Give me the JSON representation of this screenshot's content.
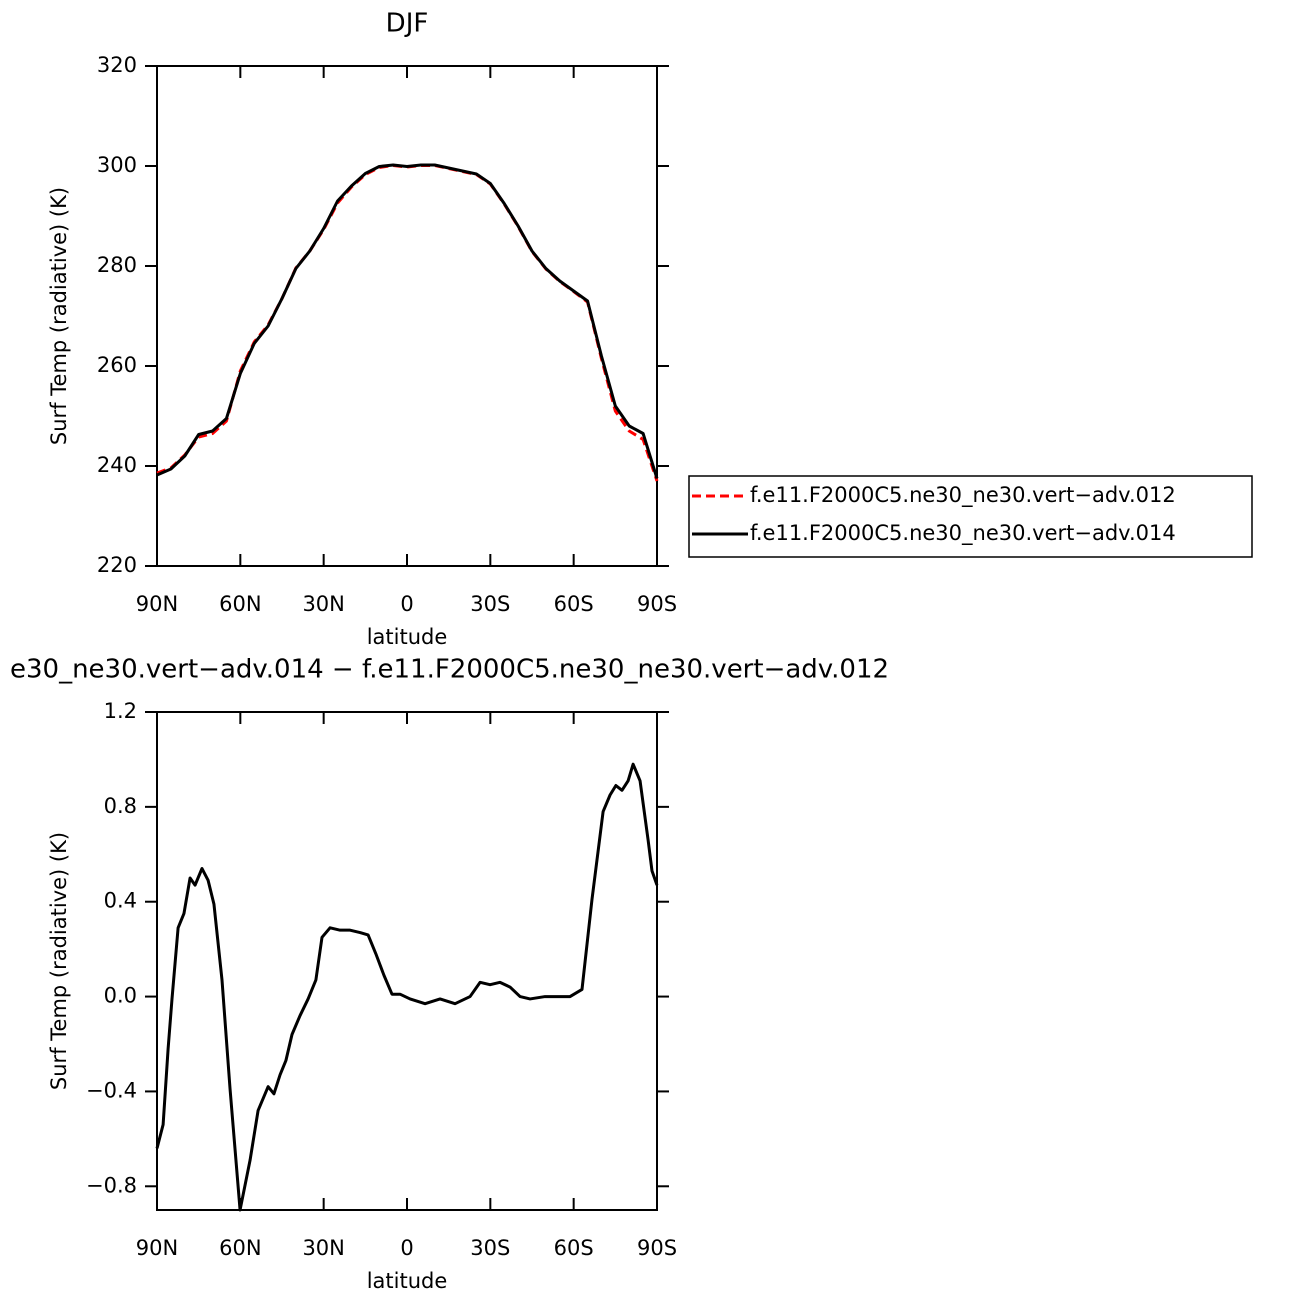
{
  "chart_data": [
    {
      "type": "line",
      "title": "DJF",
      "xlabel": "latitude",
      "ylabel": "Surf Temp (radiative) (K)",
      "xlim": [
        90,
        -90
      ],
      "ylim": [
        220,
        320
      ],
      "xticks": [
        {
          "value": 90,
          "label": "90N"
        },
        {
          "value": 60,
          "label": "60N"
        },
        {
          "value": 30,
          "label": "30N"
        },
        0,
        {
          "value": -30,
          "label": "30S"
        },
        {
          "value": -60,
          "label": "60S"
        },
        {
          "value": -90,
          "label": "90S"
        }
      ],
      "yticks": [
        220,
        240,
        260,
        280,
        300,
        320
      ],
      "legend": "right",
      "series": [
        {
          "name": "f.e11.F2000C5.ne30_ne30.vert−adv.012",
          "color": "#ff0000",
          "line_style": "dashed",
          "x": [
            90,
            85,
            80,
            75,
            70,
            65,
            60,
            55,
            50,
            45,
            40,
            35,
            30,
            25,
            20,
            15,
            10,
            5,
            0,
            -5,
            -10,
            -15,
            -20,
            -25,
            -30,
            -35,
            -40,
            -45,
            -50,
            -55,
            -60,
            -65,
            -70,
            -75,
            -80,
            -85,
            -90
          ],
          "values": [
            238.6,
            239.6,
            242.2,
            245.8,
            246.5,
            249.0,
            259.0,
            264.8,
            268.2,
            273.5,
            279.6,
            283.0,
            287.3,
            292.6,
            295.8,
            298.3,
            299.7,
            300.1,
            299.8,
            300.1,
            300.1,
            299.5,
            298.9,
            298.3,
            296.4,
            292.4,
            287.9,
            282.9,
            279.4,
            276.9,
            274.9,
            272.8,
            261.5,
            251.0,
            247.0,
            245.3,
            237.0
          ]
        },
        {
          "name": "f.e11.F2000C5.ne30_ne30.vert−adv.014",
          "color": "#000000",
          "line_style": "solid",
          "x": [
            90,
            85,
            80,
            75,
            70,
            65,
            60,
            55,
            50,
            45,
            40,
            35,
            30,
            25,
            20,
            15,
            10,
            5,
            0,
            -5,
            -10,
            -15,
            -20,
            -25,
            -30,
            -35,
            -40,
            -45,
            -50,
            -55,
            -60,
            -65,
            -70,
            -75,
            -80,
            -85,
            -90
          ],
          "values": [
            238.2,
            239.4,
            242.0,
            246.3,
            247.0,
            249.5,
            258.5,
            264.5,
            268.0,
            273.5,
            279.5,
            283.0,
            287.5,
            293.0,
            296.0,
            298.5,
            299.9,
            300.2,
            299.9,
            300.2,
            300.2,
            299.6,
            299.0,
            298.4,
            296.5,
            292.5,
            288.0,
            283.0,
            279.5,
            277.0,
            275.0,
            273.0,
            262.0,
            252.0,
            248.0,
            246.5,
            237.5
          ]
        }
      ]
    },
    {
      "type": "line",
      "title": "e30_ne30.vert−adv.014 − f.e11.F2000C5.ne30_ne30.vert−adv.012",
      "xlabel": "latitude",
      "ylabel": "Surf Temp (radiative) (K)",
      "xlim": [
        90,
        -90
      ],
      "ylim": [
        -0.9,
        1.2
      ],
      "xticks": [
        {
          "value": 90,
          "label": "90N"
        },
        {
          "value": 60,
          "label": "60N"
        },
        {
          "value": 30,
          "label": "30N"
        },
        0,
        {
          "value": -30,
          "label": "30S"
        },
        {
          "value": -60,
          "label": "60S"
        },
        {
          "value": -90,
          "label": "90S"
        }
      ],
      "yticks": [
        {
          "value": -0.8,
          "label": "−0.8"
        },
        {
          "value": -0.4,
          "label": "−0.4"
        },
        {
          "value": 0,
          "label": "0.0"
        },
        0.4,
        0.8,
        1.2
      ],
      "series": [
        {
          "color": "#000000",
          "line_style": "solid",
          "x": [
            90,
            87.8,
            86,
            84.6,
            82.4,
            80.3,
            78.1,
            76.3,
            73.8,
            71.6,
            69.5,
            66.6,
            63.7,
            60.1,
            56.5,
            53.6,
            50,
            47.9,
            45.7,
            43.6,
            41.4,
            38.5,
            35.6,
            32.8,
            30.6,
            27.7,
            24.1,
            20.5,
            16.9,
            14,
            11.2,
            8.3,
            5.4,
            2.5,
            -1.1,
            -6.5,
            -11.9,
            -17.3,
            -22.7,
            -26.3,
            -29.9,
            -33.5,
            -37.1,
            -40.7,
            -44.3,
            -49.7,
            -58.7,
            -63,
            -66.6,
            -70.6,
            -73.1,
            -75.2,
            -77.4,
            -79.6,
            -81.4,
            -83.9,
            -86.8,
            -88.2,
            -90
          ],
          "values": [
            -0.64,
            -0.54,
            -0.22,
            -0.01,
            0.29,
            0.35,
            0.5,
            0.47,
            0.54,
            0.49,
            0.39,
            0.07,
            -0.39,
            -0.9,
            -0.69,
            -0.48,
            -0.38,
            -0.41,
            -0.33,
            -0.27,
            -0.16,
            -0.08,
            -0.01,
            0.07,
            0.25,
            0.29,
            0.28,
            0.28,
            0.27,
            0.26,
            0.18,
            0.09,
            0.01,
            0.01,
            -0.01,
            -0.03,
            -0.01,
            -0.03,
            0,
            0.06,
            0.05,
            0.06,
            0.04,
            0,
            -0.01,
            0,
            0,
            0.03,
            0.41,
            0.78,
            0.85,
            0.89,
            0.87,
            0.91,
            0.98,
            0.91,
            0.66,
            0.53,
            0.47
          ]
        }
      ]
    }
  ]
}
